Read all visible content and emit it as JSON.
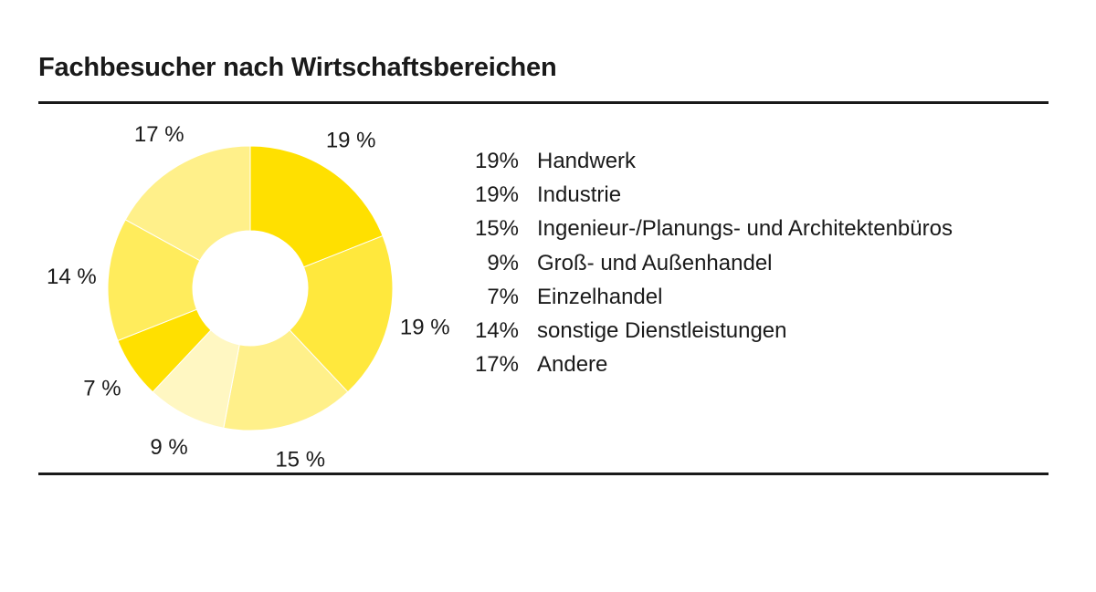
{
  "chart_data": {
    "type": "pie",
    "variant": "donut",
    "title": "Fachbesucher nach Wirtschaftsbereichen",
    "categories": [
      "Handwerk",
      "Industrie",
      "Ingenieur-/Planungs- und Architektenbüros",
      "Groß- und Außenhandel",
      "Einzelhandel",
      "sonstige Dienstleistungen",
      "Andere"
    ],
    "values": [
      19,
      19,
      15,
      9,
      7,
      14,
      17
    ],
    "value_labels": [
      "19 %",
      "19 %",
      "15 %",
      "9 %",
      "7 %",
      "14 %",
      "17 %"
    ],
    "legend_values": [
      "19%",
      "19%",
      "15%",
      "9%",
      "7%",
      "14%",
      "17%"
    ],
    "colors": [
      "#ffe000",
      "#ffe83d",
      "#fff08a",
      "#fff7c2",
      "#ffe000",
      "#ffec5c",
      "#fff08a"
    ],
    "legend_position": "right",
    "start_angle": "top, clockwise"
  }
}
